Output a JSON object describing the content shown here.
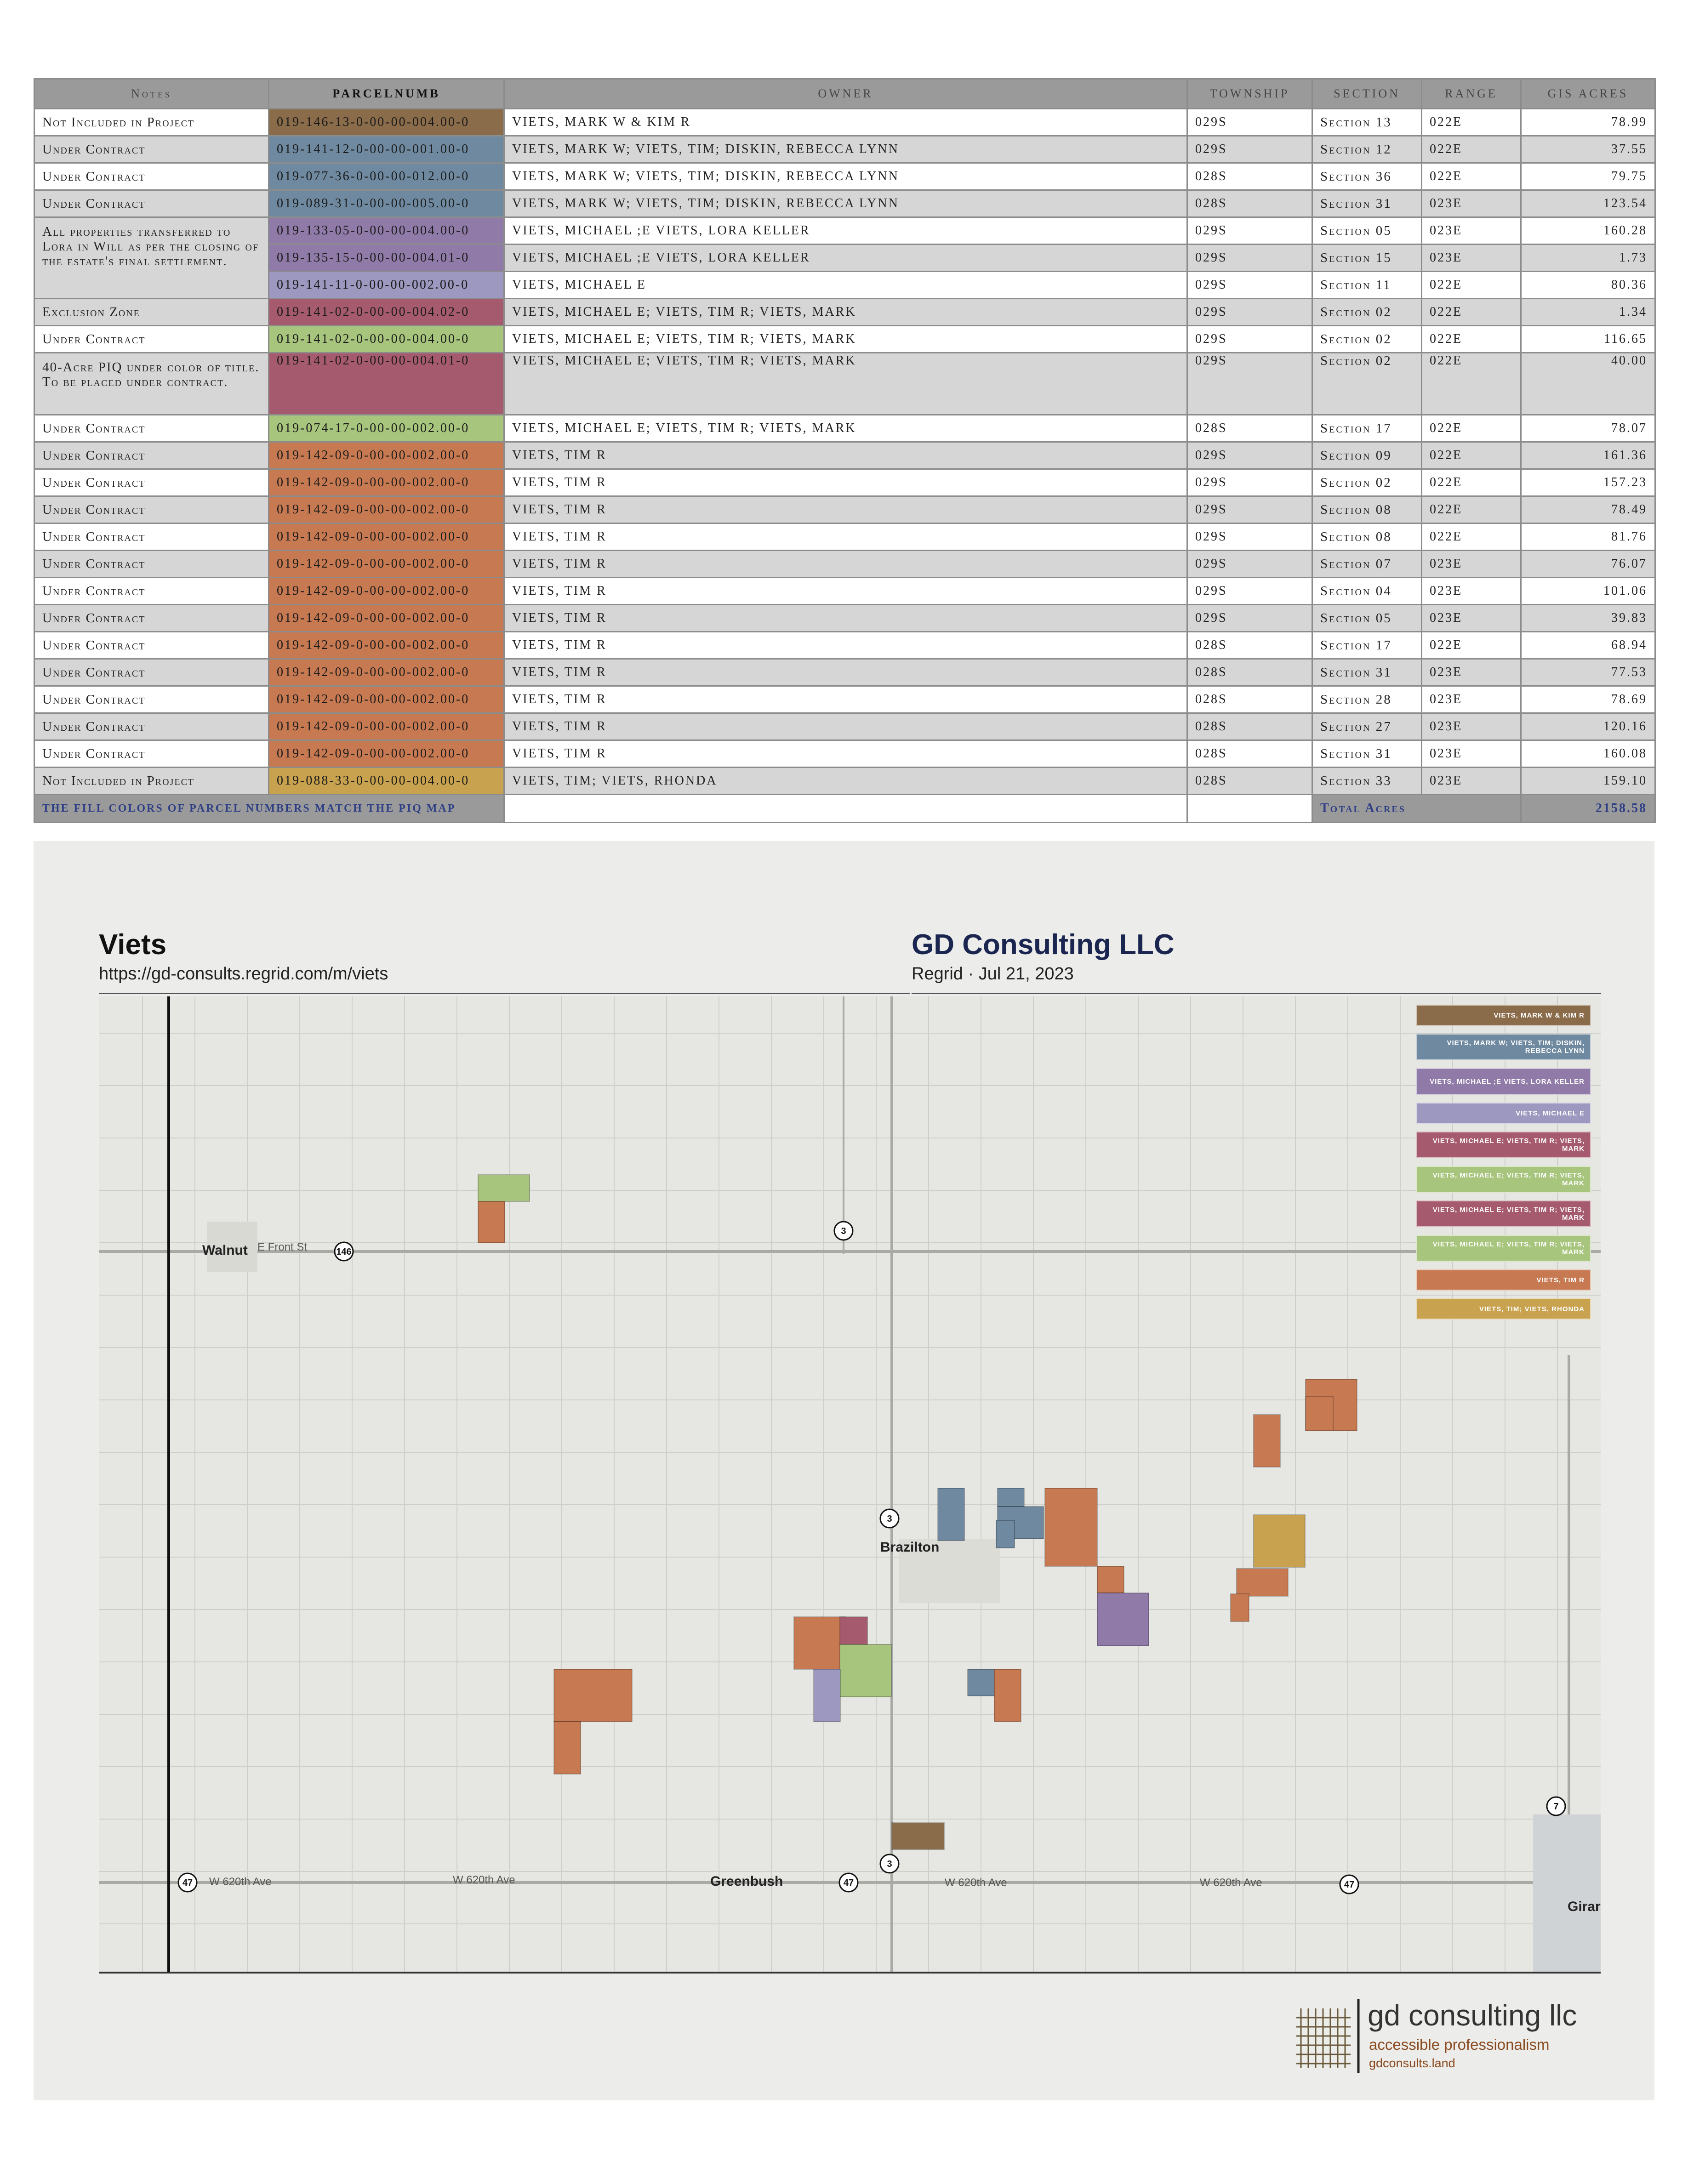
{
  "table": {
    "headers": [
      "Notes",
      "PARCELNUMB",
      "owner",
      "township",
      "section",
      "range",
      "gis acres"
    ],
    "rows": [
      {
        "note": "Not Included in Project",
        "parcel": "019-146-13-0-00-00-004.00-0",
        "color": "#8a6b4a",
        "owner": "VIETS, MARK W & KIM R",
        "township": "029S",
        "section": "Section 13",
        "range": "022E",
        "acres": "78.99"
      },
      {
        "note": "Under Contract",
        "parcel": "019-141-12-0-00-00-001.00-0",
        "color": "#6f8aa0",
        "owner": "VIETS, MARK W; VIETS, TIM; DISKIN, REBECCA LYNN",
        "township": "029S",
        "section": "Section 12",
        "range": "022E",
        "acres": "37.55"
      },
      {
        "note": "Under Contract",
        "parcel": "019-077-36-0-00-00-012.00-0",
        "color": "#6f8aa0",
        "owner": "VIETS, MARK W; VIETS, TIM; DISKIN, REBECCA LYNN",
        "township": "028S",
        "section": "Section 36",
        "range": "022E",
        "acres": "79.75"
      },
      {
        "note": "Under Contract",
        "parcel": "019-089-31-0-00-00-005.00-0",
        "color": "#6f8aa0",
        "owner": "VIETS, MARK W; VIETS, TIM; DISKIN, REBECCA LYNN",
        "township": "028S",
        "section": "Section 31",
        "range": "023E",
        "acres": "123.54"
      },
      {
        "note": "All properties transferred to Lora in Will as per the closing of the estate's final settlement.",
        "parcel": "019-133-05-0-00-00-004.00-0",
        "color": "#8f7aa8",
        "owner": "VIETS, MICHAEL ;E VIETS, LORA KELLER",
        "township": "029S",
        "section": "Section 05",
        "range": "023E",
        "acres": "160.28"
      },
      {
        "note": "",
        "parcel": "019-135-15-0-00-00-004.01-0",
        "color": "#8f7aa8",
        "owner": "VIETS, MICHAEL ;E VIETS, LORA KELLER",
        "township": "029S",
        "section": "Section 15",
        "range": "023E",
        "acres": "1.73"
      },
      {
        "note": "",
        "parcel": "019-141-11-0-00-00-002.00-0",
        "color": "#9c98bf",
        "owner": "VIETS, MICHAEL E",
        "township": "029S",
        "section": "Section 11",
        "range": "022E",
        "acres": "80.36"
      },
      {
        "note": "Exclusion Zone",
        "parcel": "019-141-02-0-00-00-004.02-0",
        "color": "#a65a6e",
        "owner": "VIETS, MICHAEL E; VIETS, TIM R; VIETS, MARK",
        "township": "029S",
        "section": "Section 02",
        "range": "022E",
        "acres": "1.34"
      },
      {
        "note": "Under Contract",
        "parcel": "019-141-02-0-00-00-004.00-0",
        "color": "#a8c57e",
        "owner": "VIETS, MICHAEL E; VIETS, TIM R; VIETS, MARK",
        "township": "029S",
        "section": "Section 02",
        "range": "022E",
        "acres": "116.65"
      },
      {
        "note": "40-Acre PIQ under color of title. To be placed under contract.",
        "parcel": "019-141-02-0-00-00-004.01-0",
        "color": "#a65a6e",
        "owner": "VIETS, MICHAEL E; VIETS, TIM R; VIETS, MARK",
        "township": "029S",
        "section": "Section 02",
        "range": "022E",
        "acres": "40.00"
      },
      {
        "note": "Under Contract",
        "parcel": "019-074-17-0-00-00-002.00-0",
        "color": "#a8c57e",
        "owner": "VIETS, MICHAEL E; VIETS, TIM R; VIETS, MARK",
        "township": "028S",
        "section": "Section 17",
        "range": "022E",
        "acres": "78.07"
      },
      {
        "note": "Under Contract",
        "parcel": "019-142-09-0-00-00-002.00-0",
        "color": "#c77a52",
        "owner": "VIETS, TIM R",
        "township": "029S",
        "section": "Section 09",
        "range": "022E",
        "acres": "161.36"
      },
      {
        "note": "Under Contract",
        "parcel": "019-142-09-0-00-00-002.00-0",
        "color": "#c77a52",
        "owner": "VIETS, TIM R",
        "township": "029S",
        "section": "Section 02",
        "range": "022E",
        "acres": "157.23"
      },
      {
        "note": "Under Contract",
        "parcel": "019-142-09-0-00-00-002.00-0",
        "color": "#c77a52",
        "owner": "VIETS, TIM R",
        "township": "029S",
        "section": "Section 08",
        "range": "022E",
        "acres": "78.49"
      },
      {
        "note": "Under Contract",
        "parcel": "019-142-09-0-00-00-002.00-0",
        "color": "#c77a52",
        "owner": "VIETS, TIM R",
        "township": "029S",
        "section": "Section 08",
        "range": "022E",
        "acres": "81.76"
      },
      {
        "note": "Under Contract",
        "parcel": "019-142-09-0-00-00-002.00-0",
        "color": "#c77a52",
        "owner": "VIETS, TIM R",
        "township": "029S",
        "section": "Section 07",
        "range": "023E",
        "acres": "76.07"
      },
      {
        "note": "Under Contract",
        "parcel": "019-142-09-0-00-00-002.00-0",
        "color": "#c77a52",
        "owner": "VIETS, TIM R",
        "township": "029S",
        "section": "Section 04",
        "range": "023E",
        "acres": "101.06"
      },
      {
        "note": "Under Contract",
        "parcel": "019-142-09-0-00-00-002.00-0",
        "color": "#c77a52",
        "owner": "VIETS, TIM R",
        "township": "029S",
        "section": "Section 05",
        "range": "023E",
        "acres": "39.83"
      },
      {
        "note": "Under Contract",
        "parcel": "019-142-09-0-00-00-002.00-0",
        "color": "#c77a52",
        "owner": "VIETS, TIM R",
        "township": "028S",
        "section": "Section 17",
        "range": "022E",
        "acres": "68.94"
      },
      {
        "note": "Under Contract",
        "parcel": "019-142-09-0-00-00-002.00-0",
        "color": "#c77a52",
        "owner": "VIETS, TIM R",
        "township": "028S",
        "section": "Section 31",
        "range": "023E",
        "acres": "77.53"
      },
      {
        "note": "Under Contract",
        "parcel": "019-142-09-0-00-00-002.00-0",
        "color": "#c77a52",
        "owner": "VIETS, TIM R",
        "township": "028S",
        "section": "Section 28",
        "range": "023E",
        "acres": "78.69"
      },
      {
        "note": "Under Contract",
        "parcel": "019-142-09-0-00-00-002.00-0",
        "color": "#c77a52",
        "owner": "VIETS, TIM R",
        "township": "028S",
        "section": "Section 27",
        "range": "023E",
        "acres": "120.16"
      },
      {
        "note": "Under Contract",
        "parcel": "019-142-09-0-00-00-002.00-0",
        "color": "#c77a52",
        "owner": "VIETS, TIM R",
        "township": "028S",
        "section": "Section 31",
        "range": "023E",
        "acres": "160.08"
      },
      {
        "note": "Not Included in Project",
        "parcel": "019-088-33-0-00-00-004.00-0",
        "color": "#c8a24e",
        "owner": "VIETS, TIM; VIETS, RHONDA",
        "township": "028S",
        "section": "Section 33",
        "range": "023E",
        "acres": "159.10"
      }
    ],
    "footer": {
      "note": "The fill colors of parcel numbers match the PIQ map",
      "total_label": "Total Acres",
      "total": "2158.58"
    }
  },
  "map": {
    "title": "Viets",
    "url": "https://gd-consults.regrid.com/m/viets",
    "company": "GD Consulting LLC",
    "source_date": "Regrid · Jul 21, 2023",
    "towns": [
      "Walnut",
      "Brazilton",
      "Greenbush",
      "Girar"
    ],
    "roads": [
      "E Front St",
      "W 620th Ave",
      "W 620th Ave",
      "W 620th Ave",
      "W 620th Ave"
    ],
    "shields": [
      "146",
      "3",
      "3",
      "3",
      "47",
      "47",
      "47",
      "7"
    ],
    "legend": [
      {
        "label": "VIETS, MARK W & KIM R",
        "color": "#8a6b4a"
      },
      {
        "label": "VIETS, MARK W; VIETS, TIM; DISKIN, REBECCA LYNN",
        "color": "#6f8aa0"
      },
      {
        "label": "VIETS, MICHAEL ;E VIETS, LORA KELLER",
        "color": "#8f7aa8"
      },
      {
        "label": "VIETS, MICHAEL E",
        "color": "#9c98bf"
      },
      {
        "label": "VIETS, MICHAEL E; VIETS, TIM R; VIETS, MARK",
        "color": "#a65a6e"
      },
      {
        "label": "VIETS, MICHAEL E; VIETS, TIM R; VIETS, MARK",
        "color": "#a8c57e"
      },
      {
        "label": "VIETS, MICHAEL E; VIETS, TIM R; VIETS, MARK",
        "color": "#a65a6e"
      },
      {
        "label": "VIETS, MICHAEL E; VIETS, TIM R; VIETS, MARK",
        "color": "#a8c57e"
      },
      {
        "label": "VIETS, TIM R",
        "color": "#c77a52"
      },
      {
        "label": "VIETS, TIM; VIETS, RHONDA",
        "color": "#c8a24e"
      }
    ]
  },
  "logo": {
    "name": "gd consulting llc",
    "tagline": "accessible professionalism",
    "url": "gdconsults.land"
  }
}
